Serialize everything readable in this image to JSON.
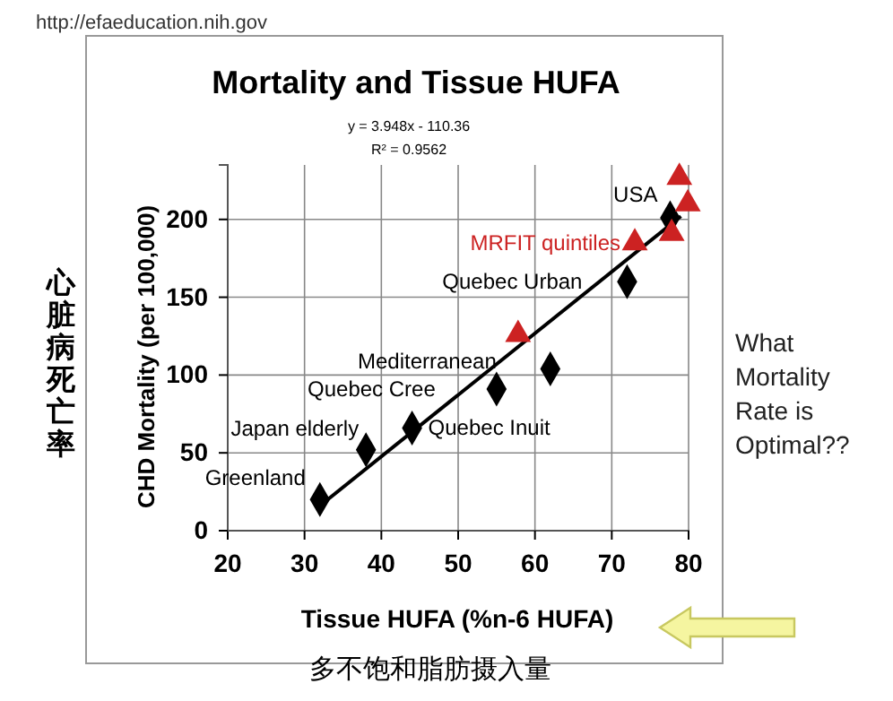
{
  "chart_data": {
    "type": "scatter",
    "title": "Mortality and Tissue HUFA",
    "xlabel": "Tissue HUFA (%n-6 HUFA)",
    "ylabel": "CHD Mortality (per 100,000)",
    "xlim": [
      20,
      80
    ],
    "xticks": [
      20,
      30,
      40,
      50,
      60,
      70,
      80
    ],
    "ylim": [
      0,
      235
    ],
    "yticks": [
      0,
      50,
      100,
      150,
      200
    ],
    "grid": true,
    "series": [
      {
        "color": "#000000",
        "marker": "diamond",
        "x": [
          32,
          38,
          44,
          55,
          62,
          72,
          77.6
        ],
        "values": [
          20,
          52,
          66,
          91,
          104,
          160,
          201
        ]
      },
      {
        "name": "MRFIT quintiles",
        "color": "#cc2222",
        "marker": "triangle",
        "x": [
          57.8,
          73,
          77.8,
          78.8,
          79.9
        ],
        "values": [
          126,
          185,
          191,
          227,
          210
        ]
      },
      {
        "type": "line",
        "color": "#000000",
        "x": [
          32,
          79
        ],
        "values": [
          16,
          202
        ]
      }
    ],
    "annotations": [
      "http://efaeducation.nih.gov",
      "y = 3.948x - 110.36",
      "R² = 0.9562",
      "心脏病死亡率",
      "多不饱和脂肪摄入量",
      "What Mortality Rate is Optimal??",
      {
        "text": "Greenland",
        "x": 32,
        "y": 20
      },
      {
        "text": "Japan elderly",
        "x": 38,
        "y": 52
      },
      {
        "text": "Quebec Inuit",
        "x": 44,
        "y": 66
      },
      {
        "text": "Quebec Cree",
        "x": 55,
        "y": 91
      },
      {
        "text": "Mediterranean",
        "x": 62,
        "y": 104
      },
      {
        "text": "Quebec Urban",
        "x": 72,
        "y": 160
      },
      {
        "text": "USA",
        "x": 77.6,
        "y": 201
      }
    ]
  }
}
